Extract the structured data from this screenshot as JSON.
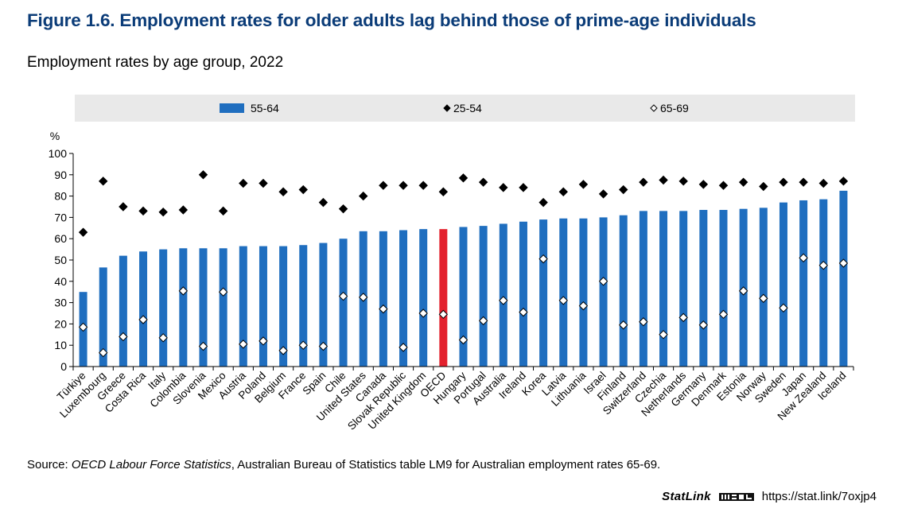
{
  "header": {
    "title": "Figure 1.6. Employment rates for older adults lag behind those of prime-age individuals",
    "subtitle": "Employment rates by age group, 2022"
  },
  "footer": {
    "source_label": "Source: ",
    "source_italic": "OECD Labour Force Statistics",
    "source_rest": ", Australian Bureau of Statistics table LM9 for Australian employment rates 65-69.",
    "statlink_word": "StatLink",
    "statlink_url": "https://stat.link/7oxjp4"
  },
  "colors": {
    "bar": "#1f6ebf",
    "highlight_bar": "#e3212d",
    "legend_bg": "#e9e9e9",
    "title": "#0b3c78"
  },
  "chart_data": {
    "type": "bar",
    "y_unit_label": "%",
    "ylim": [
      0,
      100
    ],
    "yticks": [
      0,
      10,
      20,
      30,
      40,
      50,
      60,
      70,
      80,
      90,
      100
    ],
    "legend_position": "top",
    "grid": false,
    "highlight_category": "OECD",
    "categories": [
      "Türkiye",
      "Luxembourg",
      "Greece",
      "Costa Rica",
      "Italy",
      "Colombia",
      "Slovenia",
      "Mexico",
      "Austria",
      "Poland",
      "Belgium",
      "France",
      "Spain",
      "Chile",
      "United States",
      "Canada",
      "Slovak Republic",
      "United Kingdom",
      "OECD",
      "Hungary",
      "Portugal",
      "Australia",
      "Ireland",
      "Korea",
      "Latvia",
      "Lithuania",
      "Israel",
      "Finland",
      "Switzerland",
      "Czechia",
      "Netherlands",
      "Germany",
      "Denmark",
      "Estonia",
      "Norway",
      "Sweden",
      "Japan",
      "New Zealand",
      "Iceland"
    ],
    "series": [
      {
        "name": "55-64",
        "marker": "bar",
        "values": [
          35,
          46.5,
          52,
          54,
          55,
          55.5,
          55.5,
          55.5,
          56.5,
          56.5,
          56.5,
          57,
          58,
          60,
          63.5,
          63.5,
          64,
          64.5,
          64.5,
          65.5,
          66,
          67,
          68,
          69,
          69.5,
          69.5,
          70,
          71,
          73,
          73,
          73,
          73.5,
          73.5,
          74,
          74.5,
          77,
          78,
          78.5,
          82.5
        ]
      },
      {
        "name": "25-54",
        "marker": "filled-diamond",
        "values": [
          63,
          87,
          75,
          73,
          72.5,
          73.5,
          90,
          73,
          86,
          86,
          82,
          83,
          77,
          74,
          80,
          85,
          85,
          85,
          82,
          88.5,
          86.5,
          84,
          84,
          77,
          82,
          85.5,
          81,
          83,
          86.5,
          87.5,
          87,
          85.5,
          85,
          86.5,
          84.5,
          86.5,
          86.5,
          86,
          87
        ]
      },
      {
        "name": "65-69",
        "marker": "hollow-diamond",
        "values": [
          18.5,
          6.5,
          14,
          22,
          13.5,
          35.5,
          9.5,
          35,
          10.5,
          12,
          7.5,
          10,
          9.5,
          33,
          32.5,
          27,
          9,
          25,
          24.5,
          12.5,
          21.5,
          31,
          25.5,
          50.5,
          31,
          28.5,
          40,
          19.5,
          21,
          15,
          23,
          19.5,
          24.5,
          35.5,
          32,
          27.5,
          51,
          47.5,
          48.5
        ]
      }
    ]
  }
}
